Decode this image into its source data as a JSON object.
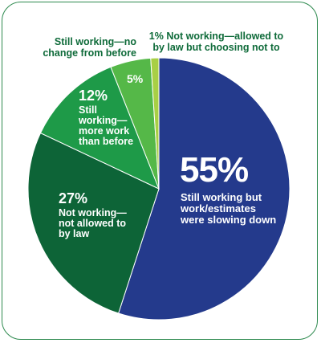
{
  "chart_data": {
    "type": "pie",
    "slices": [
      {
        "pct": "55%",
        "value": 55,
        "label": "Still working but work/estimates were slowing down",
        "color": "#243a8c"
      },
      {
        "pct": "27%",
        "value": 27,
        "label": "Not working—not allowed to by law",
        "color": "#0d6437"
      },
      {
        "pct": "12%",
        "value": 12,
        "label": "Still working—more work than before",
        "color": "#1e9a48"
      },
      {
        "pct": "5%",
        "value": 5,
        "label": "Still working—no change from before",
        "color": "#55b848"
      },
      {
        "pct": "1%",
        "value": 1,
        "label": "Not working—allowed to by law but choosing not to",
        "color": "#a8cf45"
      }
    ],
    "colors": {
      "border": "#2e8a4f",
      "label_dark": "#0f6b3a",
      "label_light": "#ffffff"
    }
  }
}
